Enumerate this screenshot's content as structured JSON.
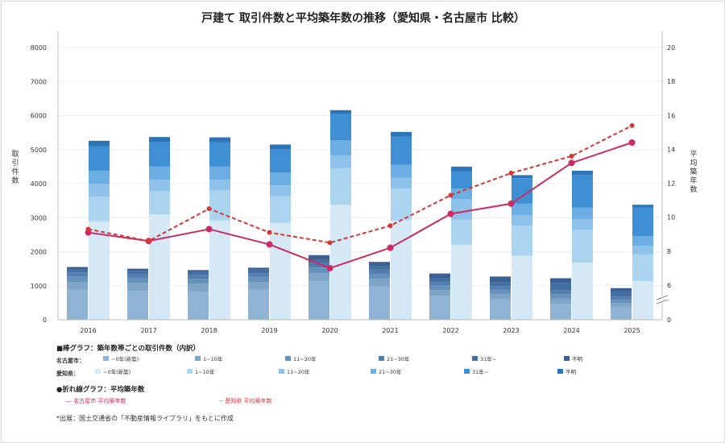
{
  "chart_data": {
    "type": "bar",
    "title": "戸建て 取引件数と平均築年数の推移（愛知県・名古屋市 比較）",
    "ylabel_left": "取引件数",
    "ylabel_right": "平均築年数",
    "categories": [
      "2016",
      "2017",
      "2018",
      "2019",
      "2020",
      "2021",
      "2022",
      "2023",
      "2024",
      "2025"
    ],
    "ylim_left": [
      0,
      8000
    ],
    "yticks_left": [
      "0",
      "1000",
      "2000",
      "3000",
      "4000",
      "5000",
      "6000",
      "7000",
      "8000"
    ],
    "ylim_right": [
      0,
      20
    ],
    "yticks_right": [
      "0",
      "6",
      "8",
      "10",
      "12",
      "14",
      "16",
      "18",
      "20"
    ],
    "right_axis_break": true,
    "bar_groups": [
      {
        "name": "名古屋市",
        "series": [
          {
            "name": "~0年(新築)",
            "color": "#8fb4d3",
            "values": [
              880,
              850,
              820,
              880,
              1130,
              980,
              700,
              600,
              470,
              380
            ]
          },
          {
            "name": "1~10年",
            "color": "#7ea4c6",
            "values": [
              230,
              230,
              230,
              230,
              240,
              220,
              170,
              150,
              150,
              110
            ]
          },
          {
            "name": "11~20年",
            "color": "#6691ba",
            "values": [
              160,
              150,
              150,
              150,
              160,
              150,
              130,
              130,
              130,
              100
            ]
          },
          {
            "name": "21~30年",
            "color": "#527fb0",
            "values": [
              120,
              110,
              110,
              110,
              130,
              120,
              110,
              110,
              110,
              90
            ]
          },
          {
            "name": "31年~",
            "color": "#446fa2",
            "values": [
              100,
              100,
              100,
              100,
              100,
              100,
              120,
              120,
              210,
              160
            ]
          },
          {
            "name": "不明",
            "color": "#3a5f90",
            "values": [
              60,
              60,
              50,
              60,
              140,
              130,
              130,
              160,
              150,
              90
            ]
          }
        ]
      },
      {
        "name": "愛知県",
        "series": [
          {
            "name": "~0年(新築)",
            "color": "#d4e8f6",
            "values": [
              2900,
              3100,
              2920,
              2850,
              3380,
              2920,
              2200,
              1880,
              1680,
              1140
            ]
          },
          {
            "name": "1~10年",
            "color": "#abd4f1",
            "values": [
              720,
              680,
              880,
              780,
              1080,
              930,
              740,
              880,
              970,
              780
            ]
          },
          {
            "name": "11~20年",
            "color": "#8fc2ea",
            "values": [
              380,
              340,
              320,
              320,
              370,
              320,
              610,
              310,
              310,
              250
            ]
          },
          {
            "name": "21~30年",
            "color": "#6aaee3",
            "values": [
              380,
              380,
              380,
              380,
              440,
              380,
              300,
              340,
              340,
              290
            ]
          },
          {
            "name": "31年~",
            "color": "#3f8fd4",
            "values": [
              720,
              720,
              710,
              680,
              770,
              830,
              510,
              750,
              960,
              840
            ]
          },
          {
            "name": "不明",
            "color": "#2c74b8",
            "values": [
              160,
              150,
              150,
              140,
              120,
              140,
              140,
              90,
              120,
              80
            ]
          }
        ]
      }
    ],
    "lines": [
      {
        "name": "名古屋市 平均築年数",
        "color": "#cc2a64",
        "style": "solid",
        "values": [
          9.1,
          8.6,
          9.3,
          8.4,
          7.0,
          8.2,
          10.2,
          10.8,
          13.2,
          14.4
        ]
      },
      {
        "name": "愛知県 平均築年数",
        "color": "#d03a3a",
        "style": "dashed",
        "values": [
          9.3,
          8.6,
          10.5,
          9.1,
          8.5,
          9.5,
          11.3,
          12.6,
          13.6,
          15.4
        ]
      }
    ]
  },
  "legend": {
    "bar_heading": "■棒グラフ：築年数帯ごとの取引件数（内訳）",
    "nagoya_label": "名古屋市：",
    "aichi_label": "愛知県：",
    "line_heading": "●折れ線グラフ：平均築年数",
    "nagoya_line_label": "— 名古屋市 平均築年数",
    "aichi_line_label": "-- 愛知県 平均築年数"
  },
  "source_note": "*出展：国土交通省の「不動産情報ライブラリ」をもとに作成"
}
